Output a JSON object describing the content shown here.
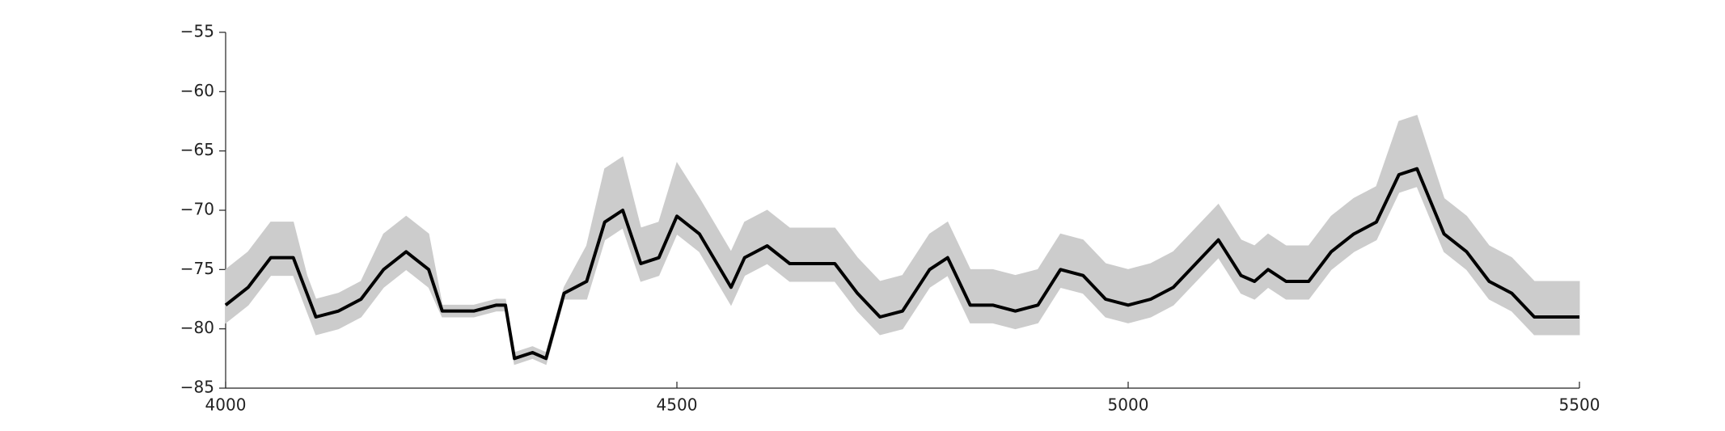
{
  "chart_data": {
    "type": "line",
    "x": [
      4000,
      4025,
      4050,
      4075,
      4090,
      4100,
      4125,
      4150,
      4175,
      4200,
      4225,
      4240,
      4275,
      4300,
      4310,
      4320,
      4340,
      4355,
      4375,
      4400,
      4420,
      4440,
      4460,
      4480,
      4500,
      4525,
      4560,
      4575,
      4600,
      4625,
      4650,
      4675,
      4700,
      4725,
      4750,
      4780,
      4800,
      4825,
      4850,
      4875,
      4900,
      4925,
      4950,
      4975,
      5000,
      5025,
      5050,
      5075,
      5100,
      5125,
      5140,
      5155,
      5175,
      5200,
      5225,
      5250,
      5275,
      5300,
      5320,
      5350,
      5375,
      5400,
      5425,
      5450,
      5475,
      5500
    ],
    "series": [
      {
        "color": "#cccccc",
        "values": [
          -75,
          -73.5,
          -71,
          -71,
          -75.5,
          -77.5,
          -77,
          -76,
          -72,
          -70.5,
          -72,
          -78,
          -78,
          -77.5,
          -77.5,
          -82,
          -81.5,
          -82,
          -76.5,
          -73,
          -66.5,
          -65.5,
          -71.5,
          -71,
          -66,
          -69,
          -73.5,
          -71,
          -70,
          -71.5,
          -71.5,
          -71.5,
          -74,
          -76,
          -75.5,
          -72,
          -71,
          -75,
          -75,
          -75.5,
          -75,
          -72,
          -72.5,
          -74.5,
          -75,
          -74.5,
          -73.5,
          -71.5,
          -69.5,
          -72.5,
          -73,
          -72,
          -73,
          -73,
          -70.5,
          -69,
          -68,
          -62.5,
          -62,
          -69,
          -70.5,
          -73,
          -74,
          -76,
          -76,
          -76
        ]
      },
      {
        "color": "#cccccc",
        "values": [
          -79.5,
          -78,
          -75.5,
          -75.5,
          -78.5,
          -80.5,
          -80,
          -79,
          -76.5,
          -75,
          -76.5,
          -79,
          -79,
          -78.5,
          -78.5,
          -83,
          -82.5,
          -83,
          -77.5,
          -77.5,
          -72.5,
          -71.5,
          -76,
          -75.5,
          -72,
          -73.5,
          -78,
          -75.5,
          -74.5,
          -76,
          -76,
          -76,
          -78.5,
          -80.5,
          -80,
          -76.5,
          -75.5,
          -79.5,
          -79.5,
          -80,
          -79.5,
          -76.5,
          -77,
          -79,
          -79.5,
          -79,
          -78,
          -76,
          -74,
          -77,
          -77.5,
          -76.5,
          -77.5,
          -77.5,
          -75,
          -73.5,
          -72.5,
          -68.5,
          -68,
          -73.5,
          -75,
          -77.5,
          -78.5,
          -80.5,
          -80.5,
          -80.5
        ]
      },
      {
        "color": "#000000",
        "values": [
          -78,
          -76.5,
          -74,
          -74,
          -77,
          -79,
          -78.5,
          -77.5,
          -75,
          -73.5,
          -75,
          -78.5,
          -78.5,
          -78,
          -78,
          -82.5,
          -82,
          -82.5,
          -77,
          -76,
          -71,
          -70,
          -74.5,
          -74,
          -70.5,
          -72,
          -76.5,
          -74,
          -73,
          -74.5,
          -74.5,
          -74.5,
          -77,
          -79,
          -78.5,
          -75,
          -74,
          -78,
          -78,
          -78.5,
          -78,
          -75,
          -75.5,
          -77.5,
          -78,
          -77.5,
          -76.5,
          -74.5,
          -72.5,
          -75.5,
          -76,
          -75,
          -76,
          -76,
          -73.5,
          -72,
          -71,
          -67,
          -66.5,
          -72,
          -73.5,
          -76,
          -77,
          -79,
          -79,
          -79
        ]
      }
    ],
    "xlim": [
      4000,
      5500
    ],
    "xticks": [
      4000,
      4500,
      5000,
      5500
    ],
    "ylim": [
      -85,
      -55
    ],
    "yticks": [
      {
        "value": -85,
        "label": "−85"
      },
      {
        "value": -80,
        "label": "−80"
      },
      {
        "value": -75,
        "label": "−75"
      },
      {
        "value": -70,
        "label": "−70"
      },
      {
        "value": -65,
        "label": "−65"
      },
      {
        "value": -60,
        "label": "−60"
      },
      {
        "value": -55,
        "label": "−55"
      }
    ]
  }
}
